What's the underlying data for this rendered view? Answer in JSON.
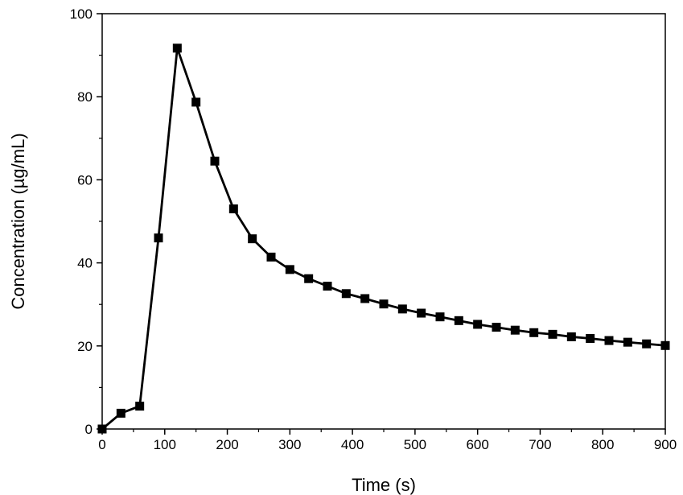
{
  "chart_data": {
    "type": "line",
    "title": "",
    "xlabel": "Time (s)",
    "ylabel": "Concentration (µg/mL)",
    "xlim": [
      0,
      900
    ],
    "ylim": [
      0,
      100
    ],
    "xticks": [
      0,
      100,
      200,
      300,
      400,
      500,
      600,
      700,
      800,
      900
    ],
    "yticks": [
      0,
      20,
      40,
      60,
      80,
      100
    ],
    "grid": false,
    "legend": "none",
    "series": [
      {
        "marker": "square",
        "color": "#000000",
        "x": [
          0,
          30,
          60,
          90,
          120,
          150,
          180,
          210,
          240,
          270,
          300,
          330,
          360,
          390,
          420,
          450,
          480,
          510,
          540,
          570,
          600,
          630,
          660,
          690,
          720,
          750,
          780,
          810,
          840,
          870,
          900
        ],
        "y": [
          0,
          3.8,
          5.5,
          46.0,
          91.7,
          78.7,
          64.5,
          53.0,
          45.8,
          41.4,
          38.4,
          36.2,
          34.4,
          32.6,
          31.4,
          30.1,
          28.9,
          27.9,
          27.0,
          26.1,
          25.2,
          24.5,
          23.8,
          23.2,
          22.8,
          22.2,
          21.8,
          21.3,
          20.9,
          20.5,
          20.1
        ]
      }
    ]
  }
}
